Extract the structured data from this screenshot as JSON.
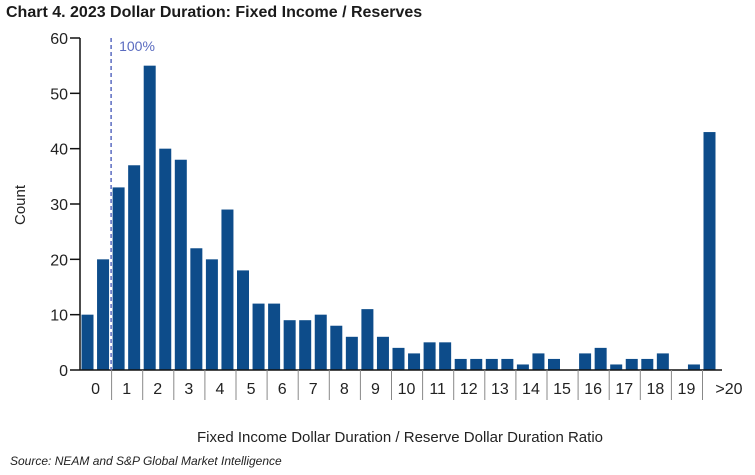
{
  "chart_data": {
    "type": "bar",
    "title": "Chart 4. 2023 Dollar Duration: Fixed Income / Reserves",
    "xlabel": "Fixed Income Dollar Duration / Reserve Dollar Duration Ratio",
    "ylabel": "Count",
    "ylim": [
      0,
      60
    ],
    "yticks": [
      0,
      10,
      20,
      30,
      40,
      50,
      60
    ],
    "grid": false,
    "tick_labels": [
      "0",
      "1",
      "2",
      "3",
      "4",
      "5",
      "6",
      "7",
      "8",
      "9",
      "10",
      "11",
      "12",
      "13",
      "14",
      "15",
      "16",
      "17",
      "18",
      "19",
      ">20"
    ],
    "bin_width": 0.5,
    "values": [
      10,
      20,
      33,
      37,
      55,
      40,
      38,
      22,
      20,
      29,
      18,
      12,
      12,
      9,
      9,
      10,
      8,
      6,
      11,
      6,
      4,
      3,
      5,
      5,
      2,
      2,
      2,
      2,
      1,
      3,
      2,
      0,
      3,
      4,
      1,
      2,
      2,
      3,
      0,
      1,
      43
    ],
    "bar_color": "#0d4c8a",
    "reference_line": {
      "x": 1,
      "label": "100%",
      "color": "#5a6bc0",
      "style": "dashed"
    }
  },
  "source": "Source: NEAM and S&P Global Market Intelligence"
}
